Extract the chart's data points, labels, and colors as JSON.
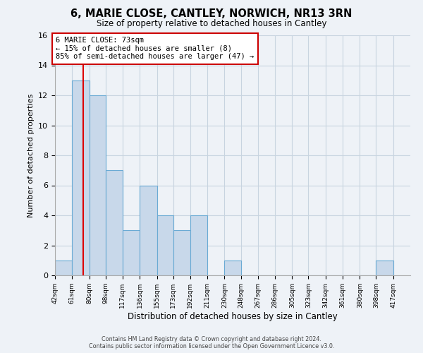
{
  "title": "6, MARIE CLOSE, CANTLEY, NORWICH, NR13 3RN",
  "subtitle": "Size of property relative to detached houses in Cantley",
  "xlabel": "Distribution of detached houses by size in Cantley",
  "ylabel": "Number of detached properties",
  "bin_labels": [
    "42sqm",
    "61sqm",
    "80sqm",
    "98sqm",
    "117sqm",
    "136sqm",
    "155sqm",
    "173sqm",
    "192sqm",
    "211sqm",
    "230sqm",
    "248sqm",
    "267sqm",
    "286sqm",
    "305sqm",
    "323sqm",
    "342sqm",
    "361sqm",
    "380sqm",
    "398sqm",
    "417sqm"
  ],
  "bin_edges": [
    42,
    61,
    80,
    98,
    117,
    136,
    155,
    173,
    192,
    211,
    230,
    248,
    267,
    286,
    305,
    323,
    342,
    361,
    380,
    398,
    417
  ],
  "counts": [
    1,
    13,
    12,
    7,
    3,
    6,
    4,
    3,
    4,
    0,
    1,
    0,
    0,
    0,
    0,
    0,
    0,
    0,
    0,
    1
  ],
  "bar_color": "#c8d8ea",
  "bar_edge_color": "#6aaad4",
  "property_line_x": 73,
  "property_line_color": "#dd0000",
  "annotation_text": "6 MARIE CLOSE: 73sqm\n← 15% of detached houses are smaller (8)\n85% of semi-detached houses are larger (47) →",
  "annotation_box_color": "#ffffff",
  "annotation_box_edge": "#cc0000",
  "ylim": [
    0,
    16
  ],
  "yticks": [
    0,
    2,
    4,
    6,
    8,
    10,
    12,
    14,
    16
  ],
  "grid_color": "#c8d4e0",
  "footer_line1": "Contains HM Land Registry data © Crown copyright and database right 2024.",
  "footer_line2": "Contains public sector information licensed under the Open Government Licence v3.0.",
  "background_color": "#eef2f7"
}
